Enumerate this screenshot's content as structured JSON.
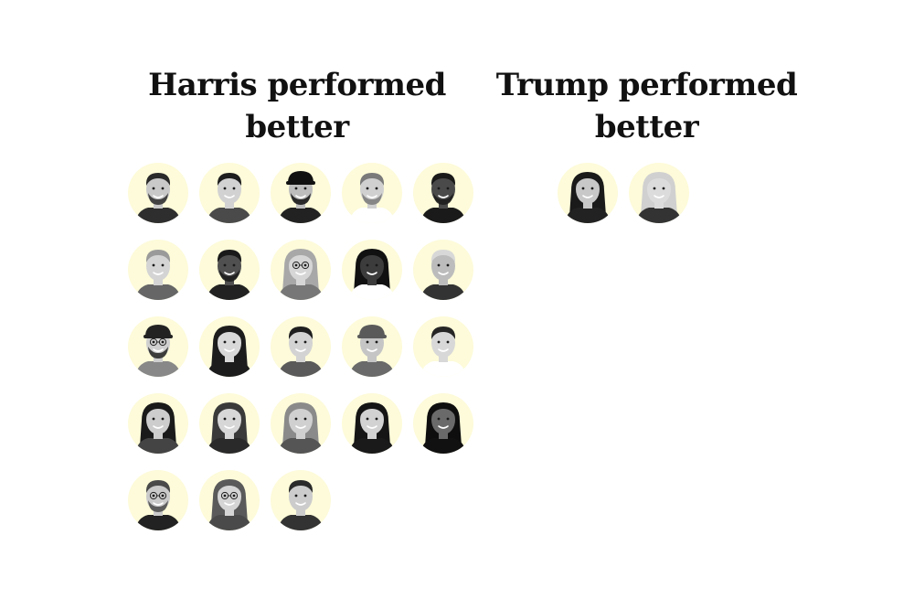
{
  "columns": [
    {
      "id": "harris",
      "title_line1": "Harris performed",
      "title_line2": "better",
      "people": [
        {
          "label": "person-1",
          "hair": "#2a2a2a",
          "skin": "#c9c9c9",
          "shirt": "#2e2e2e",
          "beard": true,
          "glasses": false,
          "long": false,
          "hat": false
        },
        {
          "label": "person-2",
          "hair": "#1e1e1e",
          "skin": "#d2d2d2",
          "shirt": "#4a4a4a",
          "beard": false,
          "glasses": false,
          "long": false,
          "hat": false
        },
        {
          "label": "person-3",
          "hair": "#111111",
          "skin": "#bdbdbd",
          "shirt": "#222222",
          "beard": true,
          "glasses": false,
          "long": false,
          "hat": true
        },
        {
          "label": "person-4",
          "hair": "#7a7a7a",
          "skin": "#d0d0d0",
          "shirt": "#ffffff",
          "beard": true,
          "glasses": false,
          "long": false,
          "hat": false
        },
        {
          "label": "person-5",
          "hair": "#1a1a1a",
          "skin": "#4a4a4a",
          "shirt": "#1a1a1a",
          "beard": true,
          "glasses": false,
          "long": false,
          "hat": false
        },
        {
          "label": "person-6",
          "hair": "#9a9a9a",
          "skin": "#d4d4d4",
          "shirt": "#666666",
          "beard": false,
          "glasses": false,
          "long": false,
          "hat": false
        },
        {
          "label": "person-7",
          "hair": "#1a1a1a",
          "skin": "#505050",
          "shirt": "#222222",
          "beard": true,
          "glasses": false,
          "long": false,
          "hat": false
        },
        {
          "label": "person-8",
          "hair": "#a8a8a8",
          "skin": "#d6d6d6",
          "shirt": "#777777",
          "beard": false,
          "glasses": true,
          "long": true,
          "hat": false
        },
        {
          "label": "person-9",
          "hair": "#111111",
          "skin": "#3c3c3c",
          "shirt": "#ffffff",
          "beard": false,
          "glasses": false,
          "long": true,
          "hat": false
        },
        {
          "label": "person-10",
          "hair": "#d8d8d8",
          "skin": "#bcbcbc",
          "shirt": "#333333",
          "beard": false,
          "glasses": false,
          "long": false,
          "hat": false
        },
        {
          "label": "person-11",
          "hair": "#222222",
          "skin": "#cfcfcf",
          "shirt": "#888888",
          "beard": true,
          "glasses": true,
          "long": false,
          "hat": true
        },
        {
          "label": "person-12",
          "hair": "#1c1c1c",
          "skin": "#d9d9d9",
          "shirt": "#1c1c1c",
          "beard": false,
          "glasses": false,
          "long": true,
          "hat": false
        },
        {
          "label": "person-13",
          "hair": "#1f1f1f",
          "skin": "#d3d3d3",
          "shirt": "#5a5a5a",
          "beard": false,
          "glasses": false,
          "long": false,
          "hat": false
        },
        {
          "label": "person-14",
          "hair": "#5a5a5a",
          "skin": "#c5c5c5",
          "shirt": "#6a6a6a",
          "beard": false,
          "glasses": false,
          "long": false,
          "hat": true
        },
        {
          "label": "person-15",
          "hair": "#262626",
          "skin": "#d8d8d8",
          "shirt": "#ffffff",
          "beard": false,
          "glasses": false,
          "long": false,
          "hat": false
        },
        {
          "label": "person-16",
          "hair": "#1a1a1a",
          "skin": "#cdcdcd",
          "shirt": "#444444",
          "beard": false,
          "glasses": false,
          "long": true,
          "hat": false
        },
        {
          "label": "person-17",
          "hair": "#3a3a3a",
          "skin": "#d7d7d7",
          "shirt": "#2a2a2a",
          "beard": false,
          "glasses": false,
          "long": true,
          "hat": false
        },
        {
          "label": "person-18",
          "hair": "#8a8a8a",
          "skin": "#d0d0d0",
          "shirt": "#555555",
          "beard": false,
          "glasses": false,
          "long": true,
          "hat": false
        },
        {
          "label": "person-19",
          "hair": "#151515",
          "skin": "#d2d2d2",
          "shirt": "#1a1a1a",
          "beard": false,
          "glasses": false,
          "long": true,
          "hat": false
        },
        {
          "label": "person-20",
          "hair": "#0e0e0e",
          "skin": "#6a6a6a",
          "shirt": "#111111",
          "beard": false,
          "glasses": false,
          "long": true,
          "hat": false
        },
        {
          "label": "person-21",
          "hair": "#4a4a4a",
          "skin": "#cacaca",
          "shirt": "#222222",
          "beard": true,
          "glasses": true,
          "long": false,
          "hat": false
        },
        {
          "label": "person-22",
          "hair": "#5a5a5a",
          "skin": "#d5d5d5",
          "shirt": "#4a4a4a",
          "beard": false,
          "glasses": true,
          "long": true,
          "hat": false
        },
        {
          "label": "person-23",
          "hair": "#2a2a2a",
          "skin": "#cccccc",
          "shirt": "#333333",
          "beard": false,
          "glasses": false,
          "long": false,
          "hat": false
        }
      ]
    },
    {
      "id": "trump",
      "title_line1": "Trump performed",
      "title_line2": "better",
      "people": [
        {
          "label": "person-24",
          "hair": "#1a1a1a",
          "skin": "#c8c8c8",
          "shirt": "#222222",
          "beard": false,
          "glasses": false,
          "long": true,
          "hat": false
        },
        {
          "label": "person-25",
          "hair": "#d0d0d0",
          "skin": "#dcdcdc",
          "shirt": "#333333",
          "beard": false,
          "glasses": false,
          "long": true,
          "hat": false
        }
      ]
    }
  ],
  "colors": {
    "portrait_background": "#fdfbd9",
    "heading": "#111111"
  }
}
